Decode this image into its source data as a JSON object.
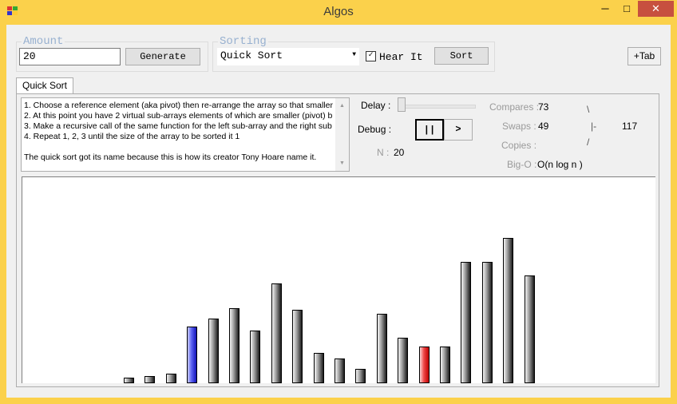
{
  "window": {
    "title": "Algos",
    "minimize_glyph": "─",
    "maximize_glyph": "□",
    "close_glyph": "✕"
  },
  "amount": {
    "legend": "Amount",
    "value": "20",
    "generate_label": "Generate"
  },
  "sorting": {
    "legend": "Sorting",
    "selected": "Quick Sort",
    "hear_it_label": "Hear It",
    "hear_it_checked": true,
    "sort_label": "Sort"
  },
  "add_tab_label": "+Tab",
  "tab": {
    "label": "Quick Sort"
  },
  "description": {
    "lines": [
      "1. Choose a reference element (aka pivot) then re-arrange the array so that smaller",
      "2. At this point you have 2 virtual sub-arrays elements of which are smaller (pivot) b",
      "3. Make a recursive call of the same function for the left sub-array and the right sub",
      "4. Repeat 1, 2, 3 until the size of the array to be sorted it 1",
      "",
      "The quick sort got its name because this is how its creator Tony Hoare name it."
    ]
  },
  "controls": {
    "delay_label": "Delay :",
    "debug_label": "Debug :",
    "pause_label": "||",
    "step_label": ">",
    "n_label": "N :",
    "n_value": "20"
  },
  "stats": {
    "compares_label": "Compares :",
    "compares_value": "73",
    "swaps_label": "Swaps :",
    "swaps_value": "49",
    "copies_label": "Copies :",
    "copies_value": "",
    "bigo_label": "Big-O :",
    "bigo_value": "O(n log n )",
    "spinner_top": "\\",
    "spinner_mid": "|-",
    "spinner_bottom": "/",
    "total_value": "117"
  },
  "colors": {
    "window_frame": "#fbd14b",
    "close": "#c7503f",
    "active_bar": "#2e35d8",
    "compare_bar": "#e02020"
  },
  "chart_data": {
    "type": "bar",
    "values": [
      0,
      0,
      0,
      0,
      0,
      7,
      9,
      12,
      72,
      82,
      95,
      67,
      126,
      93,
      38,
      31,
      18,
      88,
      57,
      46,
      46,
      153,
      153,
      183,
      136
    ],
    "colors": [
      "black",
      "black",
      "black",
      "black",
      "black",
      "black",
      "black",
      "black",
      "blue",
      "black",
      "black",
      "black",
      "black",
      "black",
      "black",
      "black",
      "black",
      "black",
      "black",
      "red",
      "black",
      "black",
      "black",
      "black",
      "black"
    ],
    "ylim": [
      0,
      260
    ]
  }
}
